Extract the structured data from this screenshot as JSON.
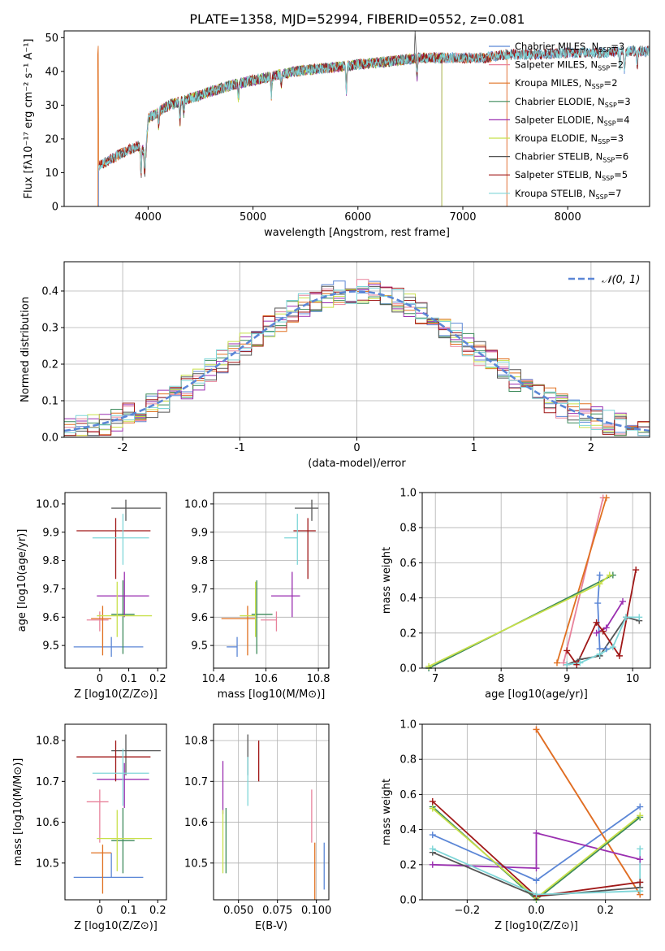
{
  "figure_title": "PLATE=1358, MJD=52994, FIBERID=0552, z=0.081",
  "colors": {
    "Chabrier MILES": "#5b86d6",
    "Salpeter MILES": "#e8829b",
    "Kroupa MILES": "#e07020",
    "Chabrier ELODIE": "#3c8a5a",
    "Salpeter ELODIE": "#9a2fb0",
    "Kroupa ELODIE": "#c8e04a",
    "Chabrier STELIB": "#555555",
    "Salpeter STELIB": "#a01818",
    "Kroupa STELIB": "#7fd6d8",
    "normal_curve": "#5b86d6"
  },
  "chart_data": [
    {
      "id": "spectrum",
      "type": "line",
      "xlabel": "wavelength [Angstrom, rest frame]",
      "ylabel": "Flux [fλ10⁻¹⁷ erg cm⁻² s⁻¹ A⁻¹]",
      "xlim": [
        3200,
        8780
      ],
      "ylim": [
        0,
        52
      ],
      "xticks": [
        4000,
        5000,
        6000,
        7000,
        8000
      ],
      "yticks": [
        0,
        10,
        20,
        30,
        40,
        50
      ],
      "legend_position": "right",
      "grid": false,
      "continuum": [
        [
          3530,
          12
        ],
        [
          3700,
          15
        ],
        [
          3900,
          18
        ],
        [
          3980,
          16
        ],
        [
          4000,
          26
        ],
        [
          4200,
          30
        ],
        [
          4500,
          33
        ],
        [
          4800,
          36
        ],
        [
          5100,
          38
        ],
        [
          5400,
          40
        ],
        [
          5700,
          41
        ],
        [
          6000,
          42
        ],
        [
          6300,
          43
        ],
        [
          6600,
          44
        ],
        [
          6900,
          44
        ],
        [
          7200,
          44
        ],
        [
          7400,
          45
        ],
        [
          7700,
          45
        ],
        [
          8000,
          45.5
        ],
        [
          8300,
          45.5
        ],
        [
          8600,
          46
        ],
        [
          8780,
          46
        ]
      ],
      "absorption_lines": [
        [
          3933,
          8
        ],
        [
          3968,
          7
        ],
        [
          4101,
          4
        ],
        [
          4304,
          6
        ],
        [
          4340,
          4
        ],
        [
          4861,
          5
        ],
        [
          5175,
          6
        ],
        [
          5270,
          3
        ],
        [
          5890,
          8
        ],
        [
          6563,
          6
        ],
        [
          8498,
          5
        ],
        [
          8542,
          6
        ],
        [
          8662,
          5
        ]
      ],
      "series": [
        {
          "name": "Chabrier MILES",
          "n_ssp": "3",
          "start": 3530,
          "end": 8780
        },
        {
          "name": "Salpeter MILES",
          "n_ssp": "2",
          "start": 3530,
          "end": 7420
        },
        {
          "name": "Kroupa MILES",
          "n_ssp": "2",
          "start": 3520,
          "end": 7420
        },
        {
          "name": "Chabrier ELODIE",
          "n_ssp": "3",
          "start": 3910,
          "end": 6800
        },
        {
          "name": "Salpeter ELODIE",
          "n_ssp": "4",
          "start": 3910,
          "end": 6800
        },
        {
          "name": "Kroupa ELODIE",
          "n_ssp": "3",
          "start": 3910,
          "end": 6800
        },
        {
          "name": "Chabrier STELIB",
          "n_ssp": "6",
          "start": 3530,
          "end": 8780
        },
        {
          "name": "Salpeter STELIB",
          "n_ssp": "5",
          "start": 3530,
          "end": 8780
        },
        {
          "name": "Kroupa STELIB",
          "n_ssp": "7",
          "start": 3530,
          "end": 8780
        }
      ]
    },
    {
      "id": "residuals",
      "type": "line",
      "xlabel": "(data-model)/error",
      "ylabel": "Normed distribution",
      "xlim": [
        -2.5,
        2.5
      ],
      "ylim": [
        0,
        0.48
      ],
      "xticks": [
        -2,
        -1,
        0,
        1,
        2
      ],
      "yticks": [
        0.0,
        0.1,
        0.2,
        0.3,
        0.4
      ],
      "grid": true,
      "legend_position": "upper right",
      "normal_label": "𝒩(0, 1)",
      "bin_width": 0.1,
      "bin_start": -2.5,
      "bin_count": 50
    },
    {
      "id": "age_vs_Z",
      "type": "scatter",
      "xlabel": "Z [log10(Z/Z⊙)]",
      "ylabel": "age  [log10(age/yr)]",
      "xlim": [
        -0.12,
        0.23
      ],
      "ylim": [
        9.42,
        10.04
      ],
      "xticks": [
        0.0,
        0.1,
        0.2
      ],
      "yticks": [
        9.5,
        9.6,
        9.7,
        9.8,
        9.9,
        10.0
      ],
      "grid": false,
      "points": [
        {
          "series": "Chabrier MILES",
          "x": 0.04,
          "xerr": [
            0.13,
            0.11
          ],
          "y": 9.495,
          "yerr": [
            0.035,
            0.035
          ]
        },
        {
          "series": "Salpeter MILES",
          "x": 0.0,
          "xerr": [
            0.045,
            0.03
          ],
          "y": 9.59,
          "yerr": [
            0.04,
            0.03
          ]
        },
        {
          "series": "Kroupa MILES",
          "x": 0.01,
          "xerr": [
            0.04,
            0.03
          ],
          "y": 9.595,
          "yerr": [
            0.13,
            0.045
          ]
        },
        {
          "series": "Chabrier ELODIE",
          "x": 0.08,
          "xerr": [
            0.04,
            0.04
          ],
          "y": 9.61,
          "yerr": [
            0.14,
            0.12
          ]
        },
        {
          "series": "Salpeter ELODIE",
          "x": 0.085,
          "xerr": [
            0.095,
            0.085
          ],
          "y": 9.675,
          "yerr": [
            0.075,
            0.085
          ]
        },
        {
          "series": "Kroupa ELODIE",
          "x": 0.06,
          "xerr": [
            0.07,
            0.12
          ],
          "y": 9.605,
          "yerr": [
            0.075,
            0.12
          ]
        },
        {
          "series": "Chabrier STELIB",
          "x": 0.09,
          "xerr": [
            0.05,
            0.12
          ],
          "y": 9.985,
          "yerr": [
            0.045,
            0.03
          ]
        },
        {
          "series": "Salpeter STELIB",
          "x": 0.055,
          "xerr": [
            0.135,
            0.12
          ],
          "y": 9.905,
          "yerr": [
            0.17,
            0.045
          ]
        },
        {
          "series": "Kroupa STELIB",
          "x": 0.08,
          "xerr": [
            0.105,
            0.09
          ],
          "y": 9.88,
          "yerr": [
            0.095,
            0.085
          ]
        }
      ]
    },
    {
      "id": "age_vs_mass",
      "type": "scatter",
      "xlabel": "mass [log10(M/M⊙)]",
      "ylabel": "",
      "xlim": [
        10.4,
        10.84
      ],
      "ylim": [
        9.42,
        10.04
      ],
      "xticks": [
        10.4,
        10.6,
        10.8
      ],
      "yticks": [
        9.5,
        9.6,
        9.7,
        9.8,
        9.9,
        10.0
      ],
      "grid": true,
      "points": [
        {
          "series": "Chabrier MILES",
          "x": 10.49,
          "xerr": [
            0.04,
            0.0
          ],
          "y": 9.495,
          "yerr": [
            0.035,
            0.035
          ]
        },
        {
          "series": "Salpeter MILES",
          "x": 10.64,
          "xerr": [
            0.06,
            0.0
          ],
          "y": 9.59,
          "yerr": [
            0.04,
            0.03
          ]
        },
        {
          "series": "Kroupa MILES",
          "x": 10.53,
          "xerr": [
            0.1,
            0.03
          ],
          "y": 9.595,
          "yerr": [
            0.13,
            0.045
          ]
        },
        {
          "series": "Chabrier ELODIE",
          "x": 10.565,
          "xerr": [
            0.02,
            0.06
          ],
          "y": 9.61,
          "yerr": [
            0.14,
            0.12
          ]
        },
        {
          "series": "Salpeter ELODIE",
          "x": 10.7,
          "xerr": [
            0.08,
            0.03
          ],
          "y": 9.675,
          "yerr": [
            0.075,
            0.085
          ]
        },
        {
          "series": "Kroupa ELODIE",
          "x": 10.56,
          "xerr": [
            0.06,
            0.0
          ],
          "y": 9.605,
          "yerr": [
            0.075,
            0.12
          ]
        },
        {
          "series": "Chabrier STELIB",
          "x": 10.775,
          "xerr": [
            0.065,
            0.025
          ],
          "y": 9.985,
          "yerr": [
            0.045,
            0.03
          ]
        },
        {
          "series": "Salpeter STELIB",
          "x": 10.76,
          "xerr": [
            0.055,
            0.03
          ],
          "y": 9.905,
          "yerr": [
            0.17,
            0.045
          ]
        },
        {
          "series": "Kroupa STELIB",
          "x": 10.72,
          "xerr": [
            0.05,
            0.0
          ],
          "y": 9.88,
          "yerr": [
            0.095,
            0.085
          ]
        }
      ]
    },
    {
      "id": "weight_vs_age",
      "type": "line",
      "xlabel": "age  [log10(age/yr)]",
      "ylabel": "mass weight",
      "xlim": [
        6.8,
        10.27
      ],
      "ylim": [
        0,
        1.0
      ],
      "xticks": [
        7,
        8,
        9,
        10
      ],
      "yticks": [
        0.0,
        0.2,
        0.4,
        0.6,
        0.8,
        1.0
      ],
      "grid": true,
      "series": [
        {
          "name": "Chabrier MILES",
          "x": [
            9.5,
            9.47,
            9.5,
            9.6
          ],
          "y": [
            0.53,
            0.37,
            0.11,
            0.11
          ]
        },
        {
          "name": "Salpeter MILES",
          "x": [
            8.95,
            9.55
          ],
          "y": [
            0.03,
            0.97
          ]
        },
        {
          "name": "Kroupa MILES",
          "x": [
            8.85,
            9.6
          ],
          "y": [
            0.03,
            0.97
          ]
        },
        {
          "name": "Chabrier ELODIE",
          "x": [
            6.9,
            9.7
          ],
          "y": [
            0.0,
            0.53
          ]
        },
        {
          "name": "Salpeter ELODIE",
          "x": [
            9.45,
            9.6,
            9.85
          ],
          "y": [
            0.2,
            0.23,
            0.38
          ]
        },
        {
          "name": "Kroupa ELODIE",
          "x": [
            6.9,
            9.5,
            9.65
          ],
          "y": [
            0.01,
            0.48,
            0.53
          ]
        },
        {
          "name": "Chabrier STELIB",
          "x": [
            9.0,
            9.2,
            9.5,
            9.9,
            10.1
          ],
          "y": [
            0.02,
            0.05,
            0.07,
            0.29,
            0.27
          ]
        },
        {
          "name": "Salpeter STELIB",
          "x": [
            9.0,
            9.15,
            9.45,
            9.55,
            9.8,
            10.05
          ],
          "y": [
            0.1,
            0.02,
            0.26,
            0.21,
            0.07,
            0.56
          ]
        },
        {
          "name": "Kroupa STELIB",
          "x": [
            9.0,
            9.2,
            9.5,
            9.7,
            9.9,
            10.1
          ],
          "y": [
            0.02,
            0.03,
            0.08,
            0.12,
            0.29,
            0.29
          ]
        }
      ]
    },
    {
      "id": "mass_vs_Z",
      "type": "scatter",
      "xlabel": "Z [log10(Z/Z⊙)]",
      "ylabel": "mass [log10(M/M⊙)]",
      "xlim": [
        -0.12,
        0.23
      ],
      "ylim": [
        10.41,
        10.84
      ],
      "xticks": [
        0.0,
        0.1,
        0.2
      ],
      "yticks": [
        10.5,
        10.6,
        10.7,
        10.8
      ],
      "grid": false,
      "points": [
        {
          "series": "Chabrier MILES",
          "x": 0.04,
          "xerr": [
            0.13,
            0.11
          ],
          "y": 10.465,
          "yerr": [
            0.0,
            0.06
          ]
        },
        {
          "series": "Salpeter MILES",
          "x": 0.0,
          "xerr": [
            0.045,
            0.03
          ],
          "y": 10.65,
          "yerr": [
            0.1,
            0.03
          ]
        },
        {
          "series": "Kroupa MILES",
          "x": 0.01,
          "xerr": [
            0.04,
            0.03
          ],
          "y": 10.525,
          "yerr": [
            0.1,
            0.02
          ]
        },
        {
          "series": "Chabrier ELODIE",
          "x": 0.08,
          "xerr": [
            0.04,
            0.04
          ],
          "y": 10.555,
          "yerr": [
            0.08,
            0.08
          ]
        },
        {
          "series": "Salpeter ELODIE",
          "x": 0.085,
          "xerr": [
            0.095,
            0.085
          ],
          "y": 10.705,
          "yerr": [
            0.07,
            0.04
          ]
        },
        {
          "series": "Kroupa ELODIE",
          "x": 0.06,
          "xerr": [
            0.07,
            0.12
          ],
          "y": 10.56,
          "yerr": [
            0.08,
            0.07
          ]
        },
        {
          "series": "Chabrier STELIB",
          "x": 0.09,
          "xerr": [
            0.05,
            0.12
          ],
          "y": 10.775,
          "yerr": [
            0.06,
            0.04
          ]
        },
        {
          "series": "Salpeter STELIB",
          "x": 0.055,
          "xerr": [
            0.135,
            0.12
          ],
          "y": 10.76,
          "yerr": [
            0.06,
            0.04
          ]
        },
        {
          "series": "Kroupa STELIB",
          "x": 0.08,
          "xerr": [
            0.105,
            0.09
          ],
          "y": 10.72,
          "yerr": [
            0.08,
            0.06
          ]
        }
      ]
    },
    {
      "id": "mass_vs_ebv",
      "type": "scatter",
      "xlabel": "E(B-V)",
      "ylabel": "",
      "xlim": [
        0.034,
        0.108
      ],
      "ylim": [
        10.41,
        10.84
      ],
      "xticks": [
        0.05,
        0.075,
        0.1
      ],
      "xticklabels": [
        "0.050",
        "0.075",
        "0.100"
      ],
      "yticks": [
        10.5,
        10.6,
        10.7,
        10.8
      ],
      "grid": true,
      "points": [
        {
          "series": "Chabrier MILES",
          "x": 0.105,
          "y": 10.49,
          "yerr": [
            0.055,
            0.06
          ]
        },
        {
          "series": "Salpeter MILES",
          "x": 0.097,
          "y": 10.615,
          "yerr": [
            0.065,
            0.065
          ]
        },
        {
          "series": "Kroupa MILES",
          "x": 0.099,
          "y": 10.475,
          "yerr": [
            0.065,
            0.075
          ]
        },
        {
          "series": "Chabrier ELODIE",
          "x": 0.042,
          "y": 10.555,
          "yerr": [
            0.08,
            0.08
          ]
        },
        {
          "series": "Salpeter ELODIE",
          "x": 0.04,
          "y": 10.67,
          "yerr": [
            0.05,
            0.08
          ]
        },
        {
          "series": "Kroupa ELODIE",
          "x": 0.04,
          "y": 10.555,
          "yerr": [
            0.08,
            0.075
          ]
        },
        {
          "series": "Chabrier STELIB",
          "x": 0.056,
          "y": 10.775,
          "yerr": [
            0.06,
            0.04
          ]
        },
        {
          "series": "Salpeter STELIB",
          "x": 0.063,
          "y": 10.76,
          "yerr": [
            0.06,
            0.04
          ]
        },
        {
          "series": "Kroupa STELIB",
          "x": 0.056,
          "y": 10.7,
          "yerr": [
            0.06,
            0.06
          ]
        }
      ]
    },
    {
      "id": "weight_vs_Z",
      "type": "line",
      "xlabel": "Z [log10(Z/Z⊙)]",
      "ylabel": "mass weight",
      "xlim": [
        -0.33,
        0.33
      ],
      "ylim": [
        0,
        1.0
      ],
      "xticks": [
        -0.2,
        0.0,
        0.2
      ],
      "xticklabels": [
        "−0.2",
        "0.0",
        "0.2"
      ],
      "yticks": [
        0.0,
        0.2,
        0.4,
        0.6,
        0.8,
        1.0
      ],
      "grid": true,
      "series": [
        {
          "name": "Chabrier MILES",
          "x": [
            -0.3,
            0.0,
            0.3
          ],
          "y": [
            0.37,
            0.11,
            0.53
          ]
        },
        {
          "name": "Salpeter MILES",
          "x": [
            0.0,
            0.3
          ],
          "y": [
            0.97,
            0.03
          ]
        },
        {
          "name": "Kroupa MILES",
          "x": [
            0.0,
            0.3
          ],
          "y": [
            0.97,
            0.03
          ]
        },
        {
          "name": "Chabrier ELODIE",
          "x": [
            -0.3,
            0.0,
            0.3
          ],
          "y": [
            0.53,
            0.0,
            0.47
          ]
        },
        {
          "name": "Salpeter ELODIE",
          "x": [
            -0.3,
            0.0,
            0.0,
            0.3
          ],
          "y": [
            0.2,
            0.18,
            0.38,
            0.23
          ]
        },
        {
          "name": "Kroupa ELODIE",
          "x": [
            -0.3,
            0.0,
            0.3
          ],
          "y": [
            0.52,
            0.01,
            0.48
          ]
        },
        {
          "name": "Chabrier STELIB",
          "x": [
            -0.3,
            0.0,
            0.3,
            0.3
          ],
          "y": [
            0.27,
            0.02,
            0.07,
            0.1
          ]
        },
        {
          "name": "Salpeter STELIB",
          "x": [
            -0.3,
            0.0,
            0.3
          ],
          "y": [
            0.56,
            0.02,
            0.1
          ]
        },
        {
          "name": "Kroupa STELIB",
          "x": [
            -0.3,
            0.0,
            0.3,
            0.3
          ],
          "y": [
            0.29,
            0.03,
            0.05,
            0.29
          ]
        }
      ]
    }
  ]
}
